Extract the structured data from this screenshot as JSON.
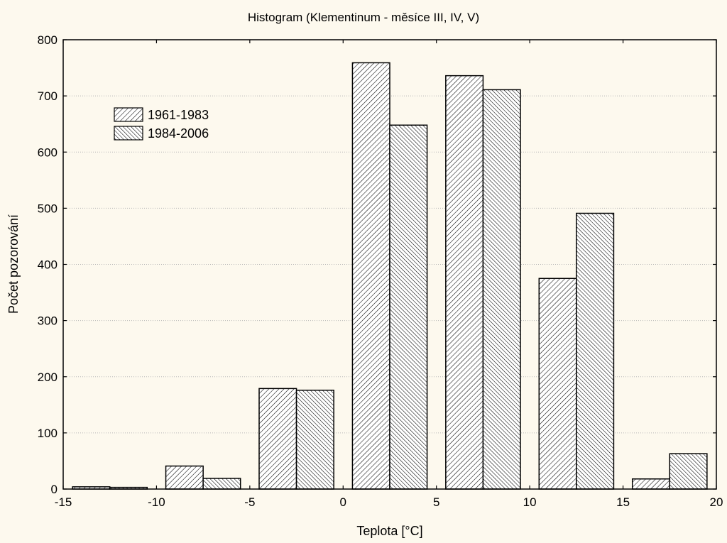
{
  "chart_data": {
    "type": "bar",
    "title": "Histogram (Klementinum - měsíce III, IV, V)",
    "xlabel": "Teplota [°C]",
    "ylabel": "Počet pozorování",
    "xlim": [
      -15,
      20
    ],
    "ylim": [
      0,
      800
    ],
    "xticks": [
      -15,
      -10,
      -5,
      0,
      5,
      10,
      15,
      20
    ],
    "yticks": [
      0,
      100,
      200,
      300,
      400,
      500,
      600,
      700,
      800
    ],
    "grid": true,
    "legend_position": "top-left",
    "bin_edges": [
      -15,
      -10,
      -5,
      0,
      5,
      10,
      15,
      20
    ],
    "series": [
      {
        "name": "1961-1983",
        "pattern": "hatch-forward",
        "values": [
          4,
          41,
          179,
          759,
          736,
          375,
          18
        ]
      },
      {
        "name": "1984-2006",
        "pattern": "hatch-back",
        "values": [
          3,
          19,
          176,
          648,
          711,
          491,
          63
        ]
      }
    ]
  }
}
